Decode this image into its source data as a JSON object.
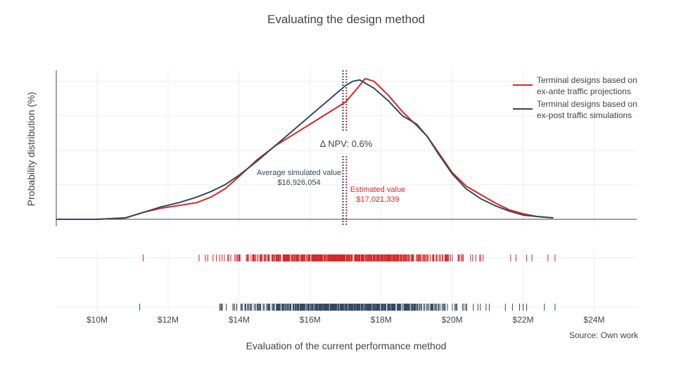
{
  "chart_data": {
    "type": "line",
    "title": "Evaluating the design method",
    "xlabel": "Evaluation of the current performance method",
    "ylabel": "Probability distribution (%)",
    "xlim": [
      8.85,
      25.2
    ],
    "ylim": [
      0,
      1.08
    ],
    "x_ticks": [
      {
        "value": 10,
        "label": "$10M"
      },
      {
        "value": 12,
        "label": "$12M"
      },
      {
        "value": 14,
        "label": "$14M"
      },
      {
        "value": 16,
        "label": "$16M"
      },
      {
        "value": 18,
        "label": "$18M"
      },
      {
        "value": 20,
        "label": "$20M"
      },
      {
        "value": 22,
        "label": "$22M"
      },
      {
        "value": 24,
        "label": "$24M"
      }
    ],
    "grid": true,
    "legend_position": "top-right",
    "series": [
      {
        "name": "Terminal designs based on ex-ante traffic projections",
        "legend_lines": [
          "Terminal designs based on",
          "ex-ante traffic projections"
        ],
        "color": "#d62728",
        "x": [
          8.85,
          10,
          10.8,
          11.3,
          11.8,
          12.3,
          12.8,
          13.2,
          13.6,
          14.0,
          14.5,
          15.0,
          15.5,
          16.0,
          16.5,
          17.0,
          17.3,
          17.55,
          17.8,
          18.2,
          18.6,
          19.0,
          19.3,
          19.6,
          20.0,
          20.4,
          20.8,
          21.2,
          21.6,
          22.0,
          22.4,
          22.85
        ],
        "y": [
          0.0,
          0.0,
          0.01,
          0.05,
          0.08,
          0.1,
          0.12,
          0.16,
          0.22,
          0.31,
          0.43,
          0.53,
          0.61,
          0.69,
          0.77,
          0.85,
          0.94,
          1.02,
          1.0,
          0.9,
          0.78,
          0.68,
          0.6,
          0.49,
          0.34,
          0.24,
          0.18,
          0.12,
          0.07,
          0.04,
          0.02,
          0.01
        ]
      },
      {
        "name": "Terminal designs based on ex-post traffic simulations",
        "legend_lines": [
          "Terminal designs based on",
          "ex-post traffic simulations"
        ],
        "color": "#34495e",
        "x": [
          8.85,
          10,
          10.8,
          11.3,
          11.8,
          12.3,
          12.8,
          13.2,
          13.6,
          14.0,
          14.5,
          15.0,
          15.5,
          16.0,
          16.5,
          17.0,
          17.2,
          17.4,
          17.8,
          18.2,
          18.6,
          19.0,
          19.3,
          19.6,
          20.0,
          20.4,
          20.8,
          21.2,
          21.6,
          22.0,
          22.4,
          22.85
        ],
        "y": [
          0.0,
          0.0,
          0.01,
          0.05,
          0.09,
          0.12,
          0.16,
          0.2,
          0.25,
          0.32,
          0.42,
          0.53,
          0.64,
          0.75,
          0.86,
          0.97,
          1.0,
          1.01,
          0.95,
          0.86,
          0.75,
          0.69,
          0.6,
          0.48,
          0.33,
          0.22,
          0.15,
          0.1,
          0.06,
          0.03,
          0.02,
          0.01
        ]
      }
    ],
    "reference_lines": [
      {
        "x": 16.926,
        "color": "#34495e",
        "style": "dotted"
      },
      {
        "x": 17.021,
        "color": "#d62728",
        "style": "dotted"
      }
    ],
    "annotations": {
      "delta": "Δ NPV: 0.6%",
      "average_label": "Average simulated value",
      "average_value": "$16,926,054",
      "estimated_label": "Estimated value",
      "estimated_value": "$17,021,339"
    },
    "rug_series": [
      {
        "name": "Terminal designs based on ex-ante traffic projections",
        "color": "#d62728",
        "min": 11.3,
        "max": 22.9,
        "sparse_upper": [
          21.65,
          21.8,
          22.1,
          22.25,
          22.7,
          22.9
        ]
      },
      {
        "name": "Terminal designs based on ex-post traffic simulations",
        "color": "#34495e",
        "min": 11.2,
        "max": 22.9,
        "sparse_upper": [
          21.5,
          21.7,
          21.9,
          22.0,
          22.1,
          22.6,
          22.9
        ]
      }
    ],
    "source": "Source: Own work"
  }
}
